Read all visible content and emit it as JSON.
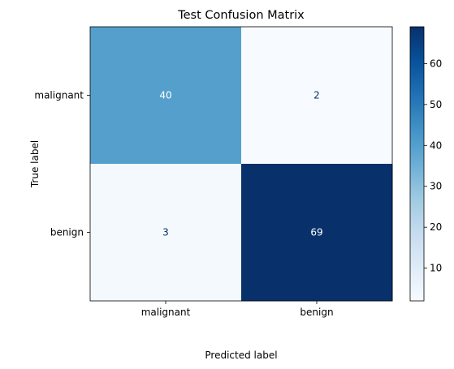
{
  "chart_data": {
    "type": "heatmap",
    "title": "Test Confusion Matrix",
    "xlabel": "Predicted label",
    "ylabel": "True label",
    "x_categories": [
      "malignant",
      "benign"
    ],
    "y_categories": [
      "malignant",
      "benign"
    ],
    "values": [
      [
        40,
        2
      ],
      [
        3,
        69
      ]
    ],
    "colormap": "Blues",
    "colorbar": {
      "ticks": [
        "10",
        "20",
        "30",
        "40",
        "50",
        "60"
      ],
      "tick_values": [
        10,
        20,
        30,
        40,
        50,
        60
      ],
      "range": [
        2,
        69
      ]
    },
    "grid": false
  }
}
